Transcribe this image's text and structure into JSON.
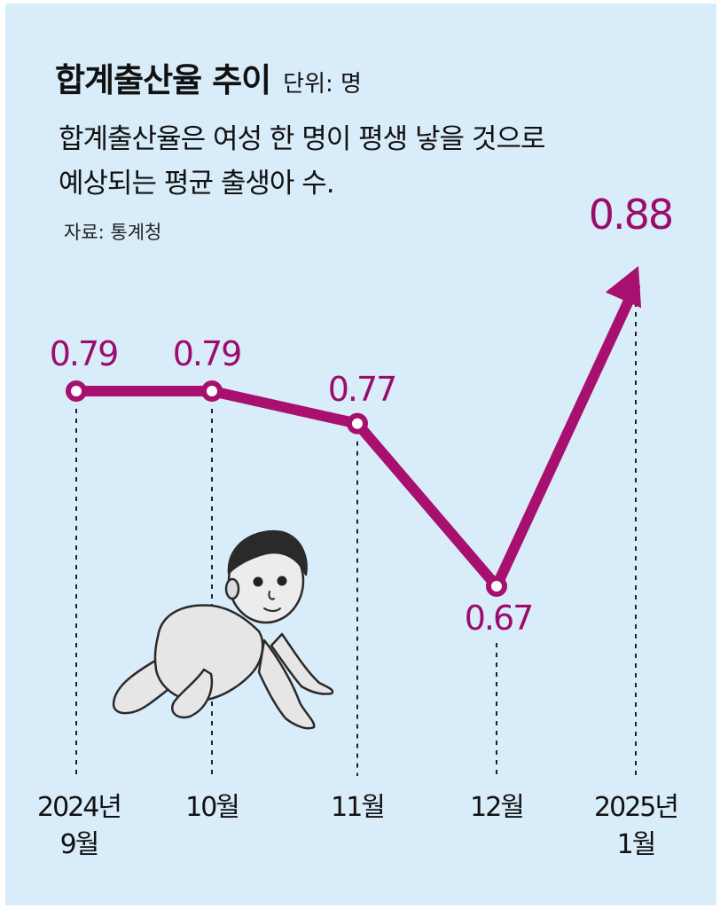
{
  "header": {
    "title": "합계출산율 추이",
    "unit": "단위: 명",
    "subtitle_line1": "합계출산율은 여성 한 명이 평생 낳을 것으로",
    "subtitle_line2": "예상되는 평균 출생아 수.",
    "source": "자료: 통계청"
  },
  "colors": {
    "background": "#d9ecfa",
    "series": "#a8106f",
    "label": "#9b0d6b"
  },
  "chart_data": {
    "type": "line",
    "title": "합계출산율 추이",
    "ylabel": "",
    "xlabel": "",
    "unit": "명",
    "categories": [
      [
        "2024년",
        "9월"
      ],
      [
        "10월"
      ],
      [
        "11월"
      ],
      [
        "12월"
      ],
      [
        "2025년",
        "1월"
      ]
    ],
    "series": [
      {
        "values": [
          0.79,
          0.79,
          0.77,
          0.67,
          0.88
        ],
        "labels": [
          "0.79",
          "0.79",
          "0.77",
          "0.67",
          "0.88"
        ]
      }
    ],
    "ylim": [
      0.6,
      0.9
    ],
    "grid": false,
    "legend": "none",
    "annotations": [
      "last point drawn as arrow"
    ],
    "illustration": "crawling-baby"
  }
}
